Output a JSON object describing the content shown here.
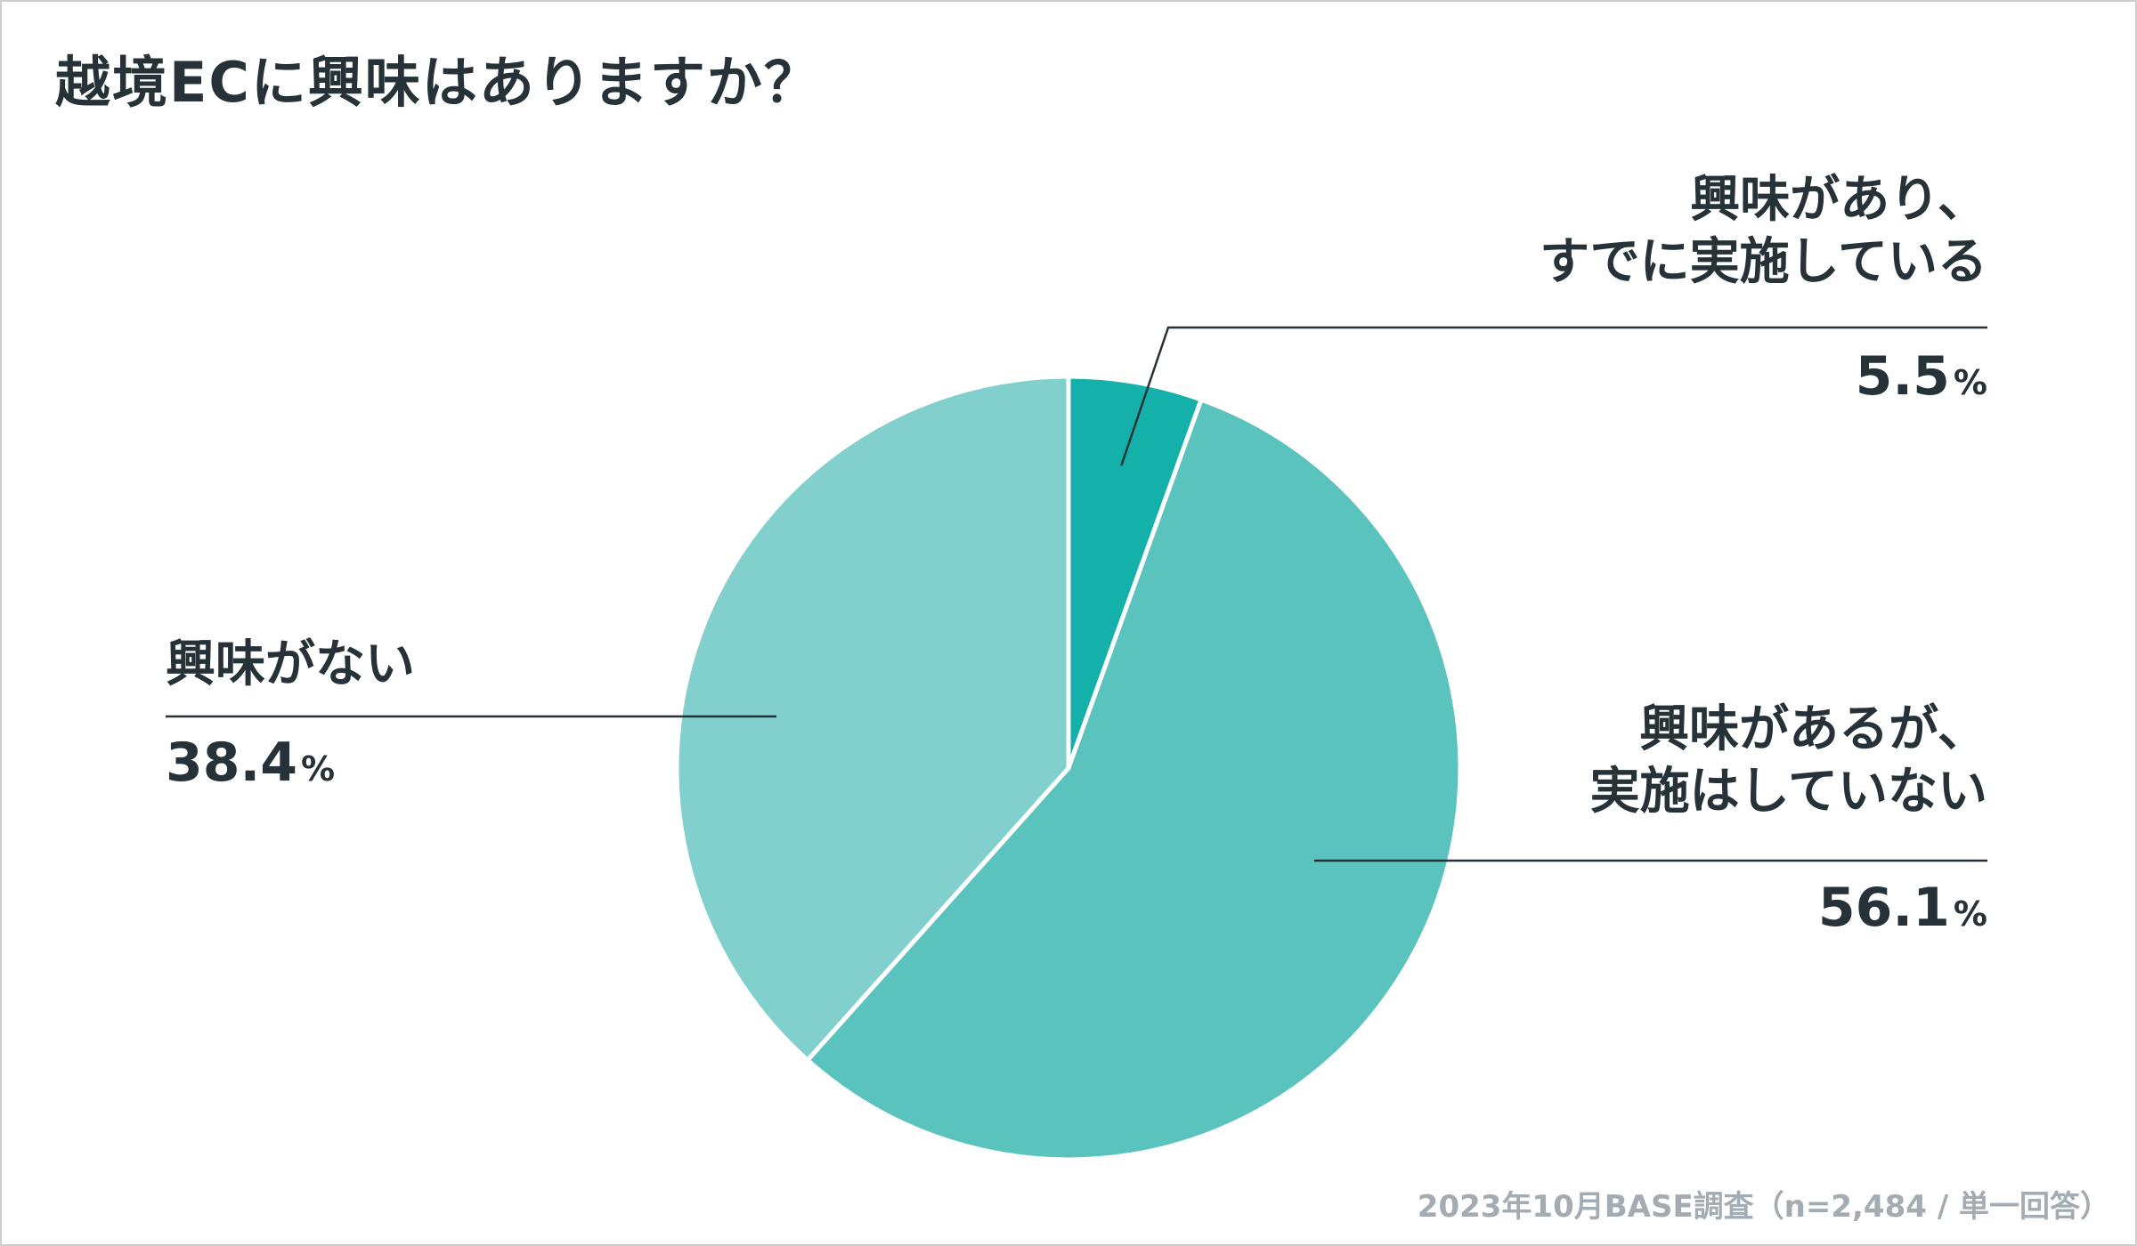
{
  "title": "越境ECに興味はありますか？",
  "footer": "2023年10月BASE調査（n=2,484 / 単一回答）",
  "chart_data": {
    "type": "pie",
    "title": "越境ECに興味はありますか？",
    "slices": [
      {
        "label_line1": "興味があり、",
        "label_line2": "すでに実施している",
        "value": 5.5,
        "value_text": "5.5",
        "unit": "%",
        "color": "#14b0aa"
      },
      {
        "label_line1": "興味があるが、",
        "label_line2": "実施はしていない",
        "value": 56.1,
        "value_text": "56.1",
        "unit": "%",
        "color": "#5bc3be"
      },
      {
        "label_line1": "興味がない",
        "label_line2": "",
        "value": 38.4,
        "value_text": "38.4",
        "unit": "%",
        "color": "#82d0cd"
      }
    ],
    "start": "top",
    "direction": "clockwise"
  }
}
